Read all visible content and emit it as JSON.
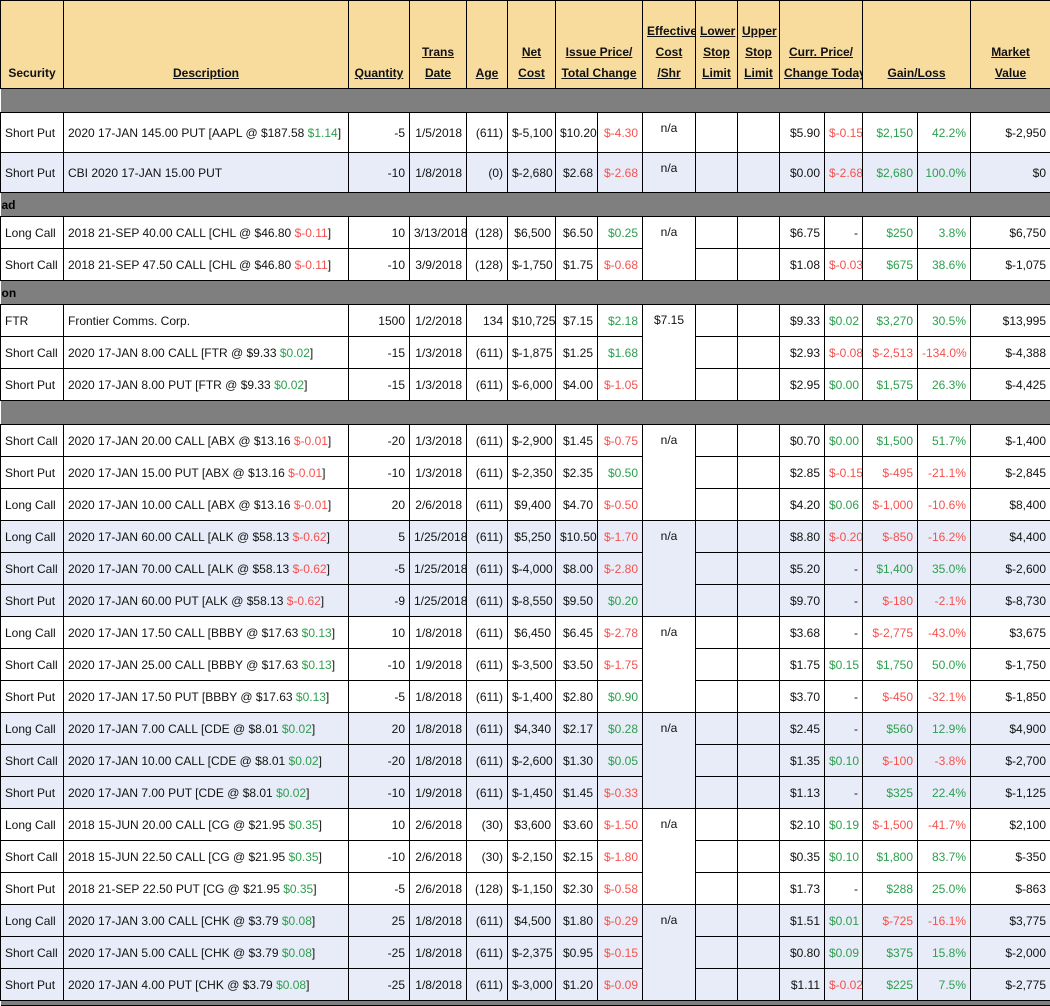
{
  "colors": {
    "header_bg": "#F8DC9E",
    "band_bg": "#7F7F7F",
    "alt_row_bg": "#E8ECF8",
    "green": "#2E9E4E",
    "red": "#F4524E"
  },
  "header": {
    "columns": [
      {
        "id": "security",
        "lines": [
          "Security"
        ],
        "sortable": false,
        "span": 1
      },
      {
        "id": "description",
        "lines": [
          "Description"
        ],
        "sortable": true,
        "span": 1
      },
      {
        "id": "quantity",
        "lines": [
          "Quantity"
        ],
        "sortable": true,
        "span": 1
      },
      {
        "id": "trans-date",
        "lines": [
          "Trans",
          "Date"
        ],
        "sortable": true,
        "span": 1
      },
      {
        "id": "age",
        "lines": [
          "Age"
        ],
        "sortable": true,
        "span": 1
      },
      {
        "id": "net-cost",
        "lines": [
          "Net",
          "Cost"
        ],
        "sortable": true,
        "span": 1
      },
      {
        "id": "issue-price",
        "lines": [
          "Issue Price/",
          "Total Change"
        ],
        "sortable": true,
        "span": 2
      },
      {
        "id": "effective-cost",
        "lines": [
          "Effective",
          "Cost",
          "/Shr"
        ],
        "sortable": true,
        "span": 1
      },
      {
        "id": "lower-stop",
        "lines": [
          "Lower",
          "Stop",
          "Limit"
        ],
        "sortable": true,
        "span": 1
      },
      {
        "id": "upper-stop",
        "lines": [
          "Upper",
          "Stop",
          "Limit"
        ],
        "sortable": true,
        "span": 1
      },
      {
        "id": "curr-price",
        "lines": [
          "Curr. Price/",
          "Change Today"
        ],
        "sortable": true,
        "span": 2
      },
      {
        "id": "gain-loss",
        "lines": [
          "Gain/Loss"
        ],
        "sortable": true,
        "span": 2
      },
      {
        "id": "market-value",
        "lines": [
          "Market",
          "Value"
        ],
        "sortable": true,
        "span": 1
      }
    ]
  },
  "rows": [
    {
      "type": "sep",
      "label": ""
    },
    {
      "type": "row",
      "bg": "white",
      "security": "Short Put",
      "desc_pre": "2020 17-JAN 145.00 PUT [AAPL @ $187.58 ",
      "desc_change": "$1.14",
      "desc_change_c": "green",
      "desc_suffix": "]",
      "qty": "-5",
      "date": "1/5/2018",
      "age": "(611)",
      "net": "$-5,100",
      "issue": "$10.20",
      "tchg": "$-4.30",
      "tchg_c": "red",
      "eff": {
        "text": "n/a",
        "rows": 1
      },
      "lower": "",
      "upper": "",
      "curr": "$5.90",
      "dchg": "$-0.15",
      "dchg_c": "red",
      "gain": "$2,150",
      "gain_c": "green",
      "pct": "42.2%",
      "pct_c": "green",
      "mkt": "$-2,950"
    },
    {
      "type": "row",
      "bg": "blue",
      "security": "Short Put",
      "desc_pre": "CBI 2020 17-JAN 15.00 PUT",
      "desc_change": "",
      "desc_change_c": "",
      "desc_suffix": "",
      "qty": "-10",
      "date": "1/8/2018",
      "age": "(0)",
      "net": "$-2,680",
      "issue": "$2.68",
      "tchg": "$-2.68",
      "tchg_c": "red",
      "eff": {
        "text": "n/a",
        "rows": 1
      },
      "lower": "",
      "upper": "",
      "curr": "$0.00",
      "dchg": "$-2.68",
      "dchg_c": "red",
      "gain": "$2,680",
      "gain_c": "green",
      "pct": "100.0%",
      "pct_c": "green",
      "mkt": "$0"
    },
    {
      "type": "sep",
      "label": "ad"
    },
    {
      "type": "row",
      "bg": "white",
      "security": "Long Call",
      "desc_pre": "2018 21-SEP 40.00 CALL [CHL @ $46.80 ",
      "desc_change": "$-0.11",
      "desc_change_c": "red",
      "desc_suffix": "]",
      "qty": "10",
      "date": "3/13/2018",
      "age": "(128)",
      "net": "$6,500",
      "issue": "$6.50",
      "tchg": "$0.25",
      "tchg_c": "green",
      "eff": {
        "text": "n/a",
        "rows": 2
      },
      "lower": "",
      "upper": "",
      "curr": "$6.75",
      "dchg": "-",
      "dchg_c": "",
      "gain": "$250",
      "gain_c": "green",
      "pct": "3.8%",
      "pct_c": "green",
      "mkt": "$6,750"
    },
    {
      "type": "row",
      "bg": "white",
      "security": "Short Call",
      "desc_pre": "2018 21-SEP 47.50 CALL [CHL @ $46.80 ",
      "desc_change": "$-0.11",
      "desc_change_c": "red",
      "desc_suffix": "]",
      "qty": "-10",
      "date": "3/9/2018",
      "age": "(128)",
      "net": "$-1,750",
      "issue": "$1.75",
      "tchg": "$-0.68",
      "tchg_c": "red",
      "eff": null,
      "lower": "",
      "upper": "",
      "curr": "$1.08",
      "dchg": "$-0.03",
      "dchg_c": "red",
      "gain": "$675",
      "gain_c": "green",
      "pct": "38.6%",
      "pct_c": "green",
      "mkt": "$-1,075"
    },
    {
      "type": "sep",
      "label": "on"
    },
    {
      "type": "row",
      "bg": "white",
      "security": "FTR",
      "desc_pre": "Frontier Comms. Corp.",
      "desc_change": "",
      "desc_change_c": "",
      "desc_suffix": "",
      "qty": "1500",
      "date": "1/2/2018",
      "age": "134",
      "net": "$10,725",
      "issue": "$7.15",
      "tchg": "$2.18",
      "tchg_c": "green",
      "eff": {
        "text": "$7.15",
        "rows": 3
      },
      "lower": "",
      "upper": "",
      "curr": "$9.33",
      "dchg": "$0.02",
      "dchg_c": "green",
      "gain": "$3,270",
      "gain_c": "green",
      "pct": "30.5%",
      "pct_c": "green",
      "mkt": "$13,995"
    },
    {
      "type": "row",
      "bg": "white",
      "security": "Short Call",
      "desc_pre": "2020 17-JAN 8.00 CALL [FTR @ $9.33 ",
      "desc_change": "$0.02",
      "desc_change_c": "green",
      "desc_suffix": "]",
      "qty": "-15",
      "date": "1/3/2018",
      "age": "(611)",
      "net": "$-1,875",
      "issue": "$1.25",
      "tchg": "$1.68",
      "tchg_c": "green",
      "eff": null,
      "lower": "",
      "upper": "",
      "curr": "$2.93",
      "dchg": "$-0.08",
      "dchg_c": "red",
      "gain": "$-2,513",
      "gain_c": "red",
      "pct": "-134.0%",
      "pct_c": "red",
      "mkt": "$-4,388"
    },
    {
      "type": "row",
      "bg": "white",
      "security": "Short Put",
      "desc_pre": "2020 17-JAN 8.00 PUT [FTR @ $9.33 ",
      "desc_change": "$0.02",
      "desc_change_c": "green",
      "desc_suffix": "]",
      "qty": "-15",
      "date": "1/3/2018",
      "age": "(611)",
      "net": "$-6,000",
      "issue": "$4.00",
      "tchg": "$-1.05",
      "tchg_c": "red",
      "eff": null,
      "lower": "",
      "upper": "",
      "curr": "$2.95",
      "dchg": "$0.00",
      "dchg_c": "green",
      "gain": "$1,575",
      "gain_c": "green",
      "pct": "26.3%",
      "pct_c": "green",
      "mkt": "$-4,425"
    },
    {
      "type": "sep",
      "label": ""
    },
    {
      "type": "row",
      "bg": "white",
      "security": "Short Call",
      "desc_pre": "2020 17-JAN 20.00 CALL [ABX @ $13.16 ",
      "desc_change": "$-0.01",
      "desc_change_c": "red",
      "desc_suffix": "]",
      "qty": "-20",
      "date": "1/3/2018",
      "age": "(611)",
      "net": "$-2,900",
      "issue": "$1.45",
      "tchg": "$-0.75",
      "tchg_c": "red",
      "eff": {
        "text": "n/a",
        "rows": 3
      },
      "lower": "",
      "upper": "",
      "curr": "$0.70",
      "dchg": "$0.00",
      "dchg_c": "green",
      "gain": "$1,500",
      "gain_c": "green",
      "pct": "51.7%",
      "pct_c": "green",
      "mkt": "$-1,400"
    },
    {
      "type": "row",
      "bg": "white",
      "security": "Short Put",
      "desc_pre": "2020 17-JAN 15.00 PUT [ABX @ $13.16 ",
      "desc_change": "$-0.01",
      "desc_change_c": "red",
      "desc_suffix": "]",
      "qty": "-10",
      "date": "1/3/2018",
      "age": "(611)",
      "net": "$-2,350",
      "issue": "$2.35",
      "tchg": "$0.50",
      "tchg_c": "green",
      "eff": null,
      "lower": "",
      "upper": "",
      "curr": "$2.85",
      "dchg": "$-0.15",
      "dchg_c": "red",
      "gain": "$-495",
      "gain_c": "red",
      "pct": "-21.1%",
      "pct_c": "red",
      "mkt": "$-2,845"
    },
    {
      "type": "row",
      "bg": "white",
      "security": "Long Call",
      "desc_pre": "2020 17-JAN 10.00 CALL [ABX @ $13.16 ",
      "desc_change": "$-0.01",
      "desc_change_c": "red",
      "desc_suffix": "]",
      "qty": "20",
      "date": "2/6/2018",
      "age": "(611)",
      "net": "$9,400",
      "issue": "$4.70",
      "tchg": "$-0.50",
      "tchg_c": "red",
      "eff": null,
      "lower": "",
      "upper": "",
      "curr": "$4.20",
      "dchg": "$0.06",
      "dchg_c": "green",
      "gain": "$-1,000",
      "gain_c": "red",
      "pct": "-10.6%",
      "pct_c": "red",
      "mkt": "$8,400"
    },
    {
      "type": "row",
      "bg": "blue",
      "security": "Long Call",
      "desc_pre": "2020 17-JAN 60.00 CALL [ALK @ $58.13 ",
      "desc_change": "$-0.62",
      "desc_change_c": "red",
      "desc_suffix": "]",
      "qty": "5",
      "date": "1/25/2018",
      "age": "(611)",
      "net": "$5,250",
      "issue": "$10.50",
      "tchg": "$-1.70",
      "tchg_c": "red",
      "eff": {
        "text": "n/a",
        "rows": 3
      },
      "lower": "",
      "upper": "",
      "curr": "$8.80",
      "dchg": "$-0.20",
      "dchg_c": "red",
      "gain": "$-850",
      "gain_c": "red",
      "pct": "-16.2%",
      "pct_c": "red",
      "mkt": "$4,400"
    },
    {
      "type": "row",
      "bg": "blue",
      "security": "Short Call",
      "desc_pre": "2020 17-JAN 70.00 CALL [ALK @ $58.13 ",
      "desc_change": "$-0.62",
      "desc_change_c": "red",
      "desc_suffix": "]",
      "qty": "-5",
      "date": "1/25/2018",
      "age": "(611)",
      "net": "$-4,000",
      "issue": "$8.00",
      "tchg": "$-2.80",
      "tchg_c": "red",
      "eff": null,
      "lower": "",
      "upper": "",
      "curr": "$5.20",
      "dchg": "-",
      "dchg_c": "",
      "gain": "$1,400",
      "gain_c": "green",
      "pct": "35.0%",
      "pct_c": "green",
      "mkt": "$-2,600"
    },
    {
      "type": "row",
      "bg": "blue",
      "security": "Short Put",
      "desc_pre": "2020 17-JAN 60.00 PUT [ALK @ $58.13 ",
      "desc_change": "$-0.62",
      "desc_change_c": "red",
      "desc_suffix": "]",
      "qty": "-9",
      "date": "1/25/2018",
      "age": "(611)",
      "net": "$-8,550",
      "issue": "$9.50",
      "tchg": "$0.20",
      "tchg_c": "green",
      "eff": null,
      "lower": "",
      "upper": "",
      "curr": "$9.70",
      "dchg": "-",
      "dchg_c": "",
      "gain": "$-180",
      "gain_c": "red",
      "pct": "-2.1%",
      "pct_c": "red",
      "mkt": "$-8,730"
    },
    {
      "type": "row",
      "bg": "white",
      "security": "Long Call",
      "desc_pre": "2020 17-JAN 17.50 CALL [BBBY @ $17.63 ",
      "desc_change": "$0.13",
      "desc_change_c": "green",
      "desc_suffix": "]",
      "qty": "10",
      "date": "1/8/2018",
      "age": "(611)",
      "net": "$6,450",
      "issue": "$6.45",
      "tchg": "$-2.78",
      "tchg_c": "red",
      "eff": {
        "text": "n/a",
        "rows": 3
      },
      "lower": "",
      "upper": "",
      "curr": "$3.68",
      "dchg": "-",
      "dchg_c": "",
      "gain": "$-2,775",
      "gain_c": "red",
      "pct": "-43.0%",
      "pct_c": "red",
      "mkt": "$3,675"
    },
    {
      "type": "row",
      "bg": "white",
      "security": "Short Call",
      "desc_pre": "2020 17-JAN 25.00 CALL [BBBY @ $17.63 ",
      "desc_change": "$0.13",
      "desc_change_c": "green",
      "desc_suffix": "]",
      "qty": "-10",
      "date": "1/9/2018",
      "age": "(611)",
      "net": "$-3,500",
      "issue": "$3.50",
      "tchg": "$-1.75",
      "tchg_c": "red",
      "eff": null,
      "lower": "",
      "upper": "",
      "curr": "$1.75",
      "dchg": "$0.15",
      "dchg_c": "green",
      "gain": "$1,750",
      "gain_c": "green",
      "pct": "50.0%",
      "pct_c": "green",
      "mkt": "$-1,750"
    },
    {
      "type": "row",
      "bg": "white",
      "security": "Short Put",
      "desc_pre": "2020 17-JAN 17.50 PUT [BBBY @ $17.63 ",
      "desc_change": "$0.13",
      "desc_change_c": "green",
      "desc_suffix": "]",
      "qty": "-5",
      "date": "1/8/2018",
      "age": "(611)",
      "net": "$-1,400",
      "issue": "$2.80",
      "tchg": "$0.90",
      "tchg_c": "green",
      "eff": null,
      "lower": "",
      "upper": "",
      "curr": "$3.70",
      "dchg": "-",
      "dchg_c": "",
      "gain": "$-450",
      "gain_c": "red",
      "pct": "-32.1%",
      "pct_c": "red",
      "mkt": "$-1,850"
    },
    {
      "type": "row",
      "bg": "blue",
      "security": "Long Call",
      "desc_pre": "2020 17-JAN 7.00 CALL [CDE @ $8.01 ",
      "desc_change": "$0.02",
      "desc_change_c": "green",
      "desc_suffix": "]",
      "qty": "20",
      "date": "1/8/2018",
      "age": "(611)",
      "net": "$4,340",
      "issue": "$2.17",
      "tchg": "$0.28",
      "tchg_c": "green",
      "eff": {
        "text": "n/a",
        "rows": 3
      },
      "lower": "",
      "upper": "",
      "curr": "$2.45",
      "dchg": "-",
      "dchg_c": "",
      "gain": "$560",
      "gain_c": "green",
      "pct": "12.9%",
      "pct_c": "green",
      "mkt": "$4,900"
    },
    {
      "type": "row",
      "bg": "blue",
      "security": "Short Call",
      "desc_pre": "2020 17-JAN 10.00 CALL [CDE @ $8.01 ",
      "desc_change": "$0.02",
      "desc_change_c": "green",
      "desc_suffix": "]",
      "qty": "-20",
      "date": "1/8/2018",
      "age": "(611)",
      "net": "$-2,600",
      "issue": "$1.30",
      "tchg": "$0.05",
      "tchg_c": "green",
      "eff": null,
      "lower": "",
      "upper": "",
      "curr": "$1.35",
      "dchg": "$0.10",
      "dchg_c": "green",
      "gain": "$-100",
      "gain_c": "red",
      "pct": "-3.8%",
      "pct_c": "red",
      "mkt": "$-2,700"
    },
    {
      "type": "row",
      "bg": "blue",
      "security": "Short Put",
      "desc_pre": "2020 17-JAN 7.00 PUT [CDE @ $8.01 ",
      "desc_change": "$0.02",
      "desc_change_c": "green",
      "desc_suffix": "]",
      "qty": "-10",
      "date": "1/9/2018",
      "age": "(611)",
      "net": "$-1,450",
      "issue": "$1.45",
      "tchg": "$-0.33",
      "tchg_c": "red",
      "eff": null,
      "lower": "",
      "upper": "",
      "curr": "$1.13",
      "dchg": "-",
      "dchg_c": "",
      "gain": "$325",
      "gain_c": "green",
      "pct": "22.4%",
      "pct_c": "green",
      "mkt": "$-1,125"
    },
    {
      "type": "row",
      "bg": "white",
      "security": "Long Call",
      "desc_pre": "2018 15-JUN 20.00 CALL [CG @ $21.95 ",
      "desc_change": "$0.35",
      "desc_change_c": "green",
      "desc_suffix": "]",
      "qty": "10",
      "date": "2/6/2018",
      "age": "(30)",
      "net": "$3,600",
      "issue": "$3.60",
      "tchg": "$-1.50",
      "tchg_c": "red",
      "eff": {
        "text": "n/a",
        "rows": 3
      },
      "lower": "",
      "upper": "",
      "curr": "$2.10",
      "dchg": "$0.19",
      "dchg_c": "green",
      "gain": "$-1,500",
      "gain_c": "red",
      "pct": "-41.7%",
      "pct_c": "red",
      "mkt": "$2,100"
    },
    {
      "type": "row",
      "bg": "white",
      "security": "Short Call",
      "desc_pre": "2018 15-JUN 22.50 CALL [CG @ $21.95 ",
      "desc_change": "$0.35",
      "desc_change_c": "green",
      "desc_suffix": "]",
      "qty": "-10",
      "date": "2/6/2018",
      "age": "(30)",
      "net": "$-2,150",
      "issue": "$2.15",
      "tchg": "$-1.80",
      "tchg_c": "red",
      "eff": null,
      "lower": "",
      "upper": "",
      "curr": "$0.35",
      "dchg": "$0.10",
      "dchg_c": "green",
      "gain": "$1,800",
      "gain_c": "green",
      "pct": "83.7%",
      "pct_c": "green",
      "mkt": "$-350"
    },
    {
      "type": "row",
      "bg": "white",
      "security": "Short Put",
      "desc_pre": "2018 21-SEP 22.50 PUT [CG @ $21.95 ",
      "desc_change": "$0.35",
      "desc_change_c": "green",
      "desc_suffix": "]",
      "qty": "-5",
      "date": "2/6/2018",
      "age": "(128)",
      "net": "$-1,150",
      "issue": "$2.30",
      "tchg": "$-0.58",
      "tchg_c": "red",
      "eff": null,
      "lower": "",
      "upper": "",
      "curr": "$1.73",
      "dchg": "-",
      "dchg_c": "",
      "gain": "$288",
      "gain_c": "green",
      "pct": "25.0%",
      "pct_c": "green",
      "mkt": "$-863"
    },
    {
      "type": "row",
      "bg": "blue",
      "security": "Long Call",
      "desc_pre": "2020 17-JAN 3.00 CALL [CHK @ $3.79 ",
      "desc_change": "$0.08",
      "desc_change_c": "green",
      "desc_suffix": "]",
      "qty": "25",
      "date": "1/8/2018",
      "age": "(611)",
      "net": "$4,500",
      "issue": "$1.80",
      "tchg": "$-0.29",
      "tchg_c": "red",
      "eff": {
        "text": "n/a",
        "rows": 3
      },
      "lower": "",
      "upper": "",
      "curr": "$1.51",
      "dchg": "$0.01",
      "dchg_c": "green",
      "gain": "$-725",
      "gain_c": "red",
      "pct": "-16.1%",
      "pct_c": "red",
      "mkt": "$3,775"
    },
    {
      "type": "row",
      "bg": "blue",
      "security": "Short Call",
      "desc_pre": "2020 17-JAN 5.00 CALL [CHK @ $3.79 ",
      "desc_change": "$0.08",
      "desc_change_c": "green",
      "desc_suffix": "]",
      "qty": "-25",
      "date": "1/8/2018",
      "age": "(611)",
      "net": "$-2,375",
      "issue": "$0.95",
      "tchg": "$-0.15",
      "tchg_c": "red",
      "eff": null,
      "lower": "",
      "upper": "",
      "curr": "$0.80",
      "dchg": "$0.09",
      "dchg_c": "green",
      "gain": "$375",
      "gain_c": "green",
      "pct": "15.8%",
      "pct_c": "green",
      "mkt": "$-2,000"
    },
    {
      "type": "row",
      "bg": "blue",
      "security": "Short Put",
      "desc_pre": "2020 17-JAN 4.00 PUT [CHK @ $3.79 ",
      "desc_change": "$0.08",
      "desc_change_c": "green",
      "desc_suffix": "]",
      "qty": "-25",
      "date": "1/8/2018",
      "age": "(611)",
      "net": "$-3,000",
      "issue": "$1.20",
      "tchg": "$-0.09",
      "tchg_c": "red",
      "eff": null,
      "lower": "",
      "upper": "",
      "curr": "$1.11",
      "dchg": "$-0.02",
      "dchg_c": "red",
      "gain": "$225",
      "gain_c": "green",
      "pct": "7.5%",
      "pct_c": "green",
      "mkt": "$-2,775"
    },
    {
      "type": "sep",
      "label": "",
      "thin": true
    }
  ]
}
